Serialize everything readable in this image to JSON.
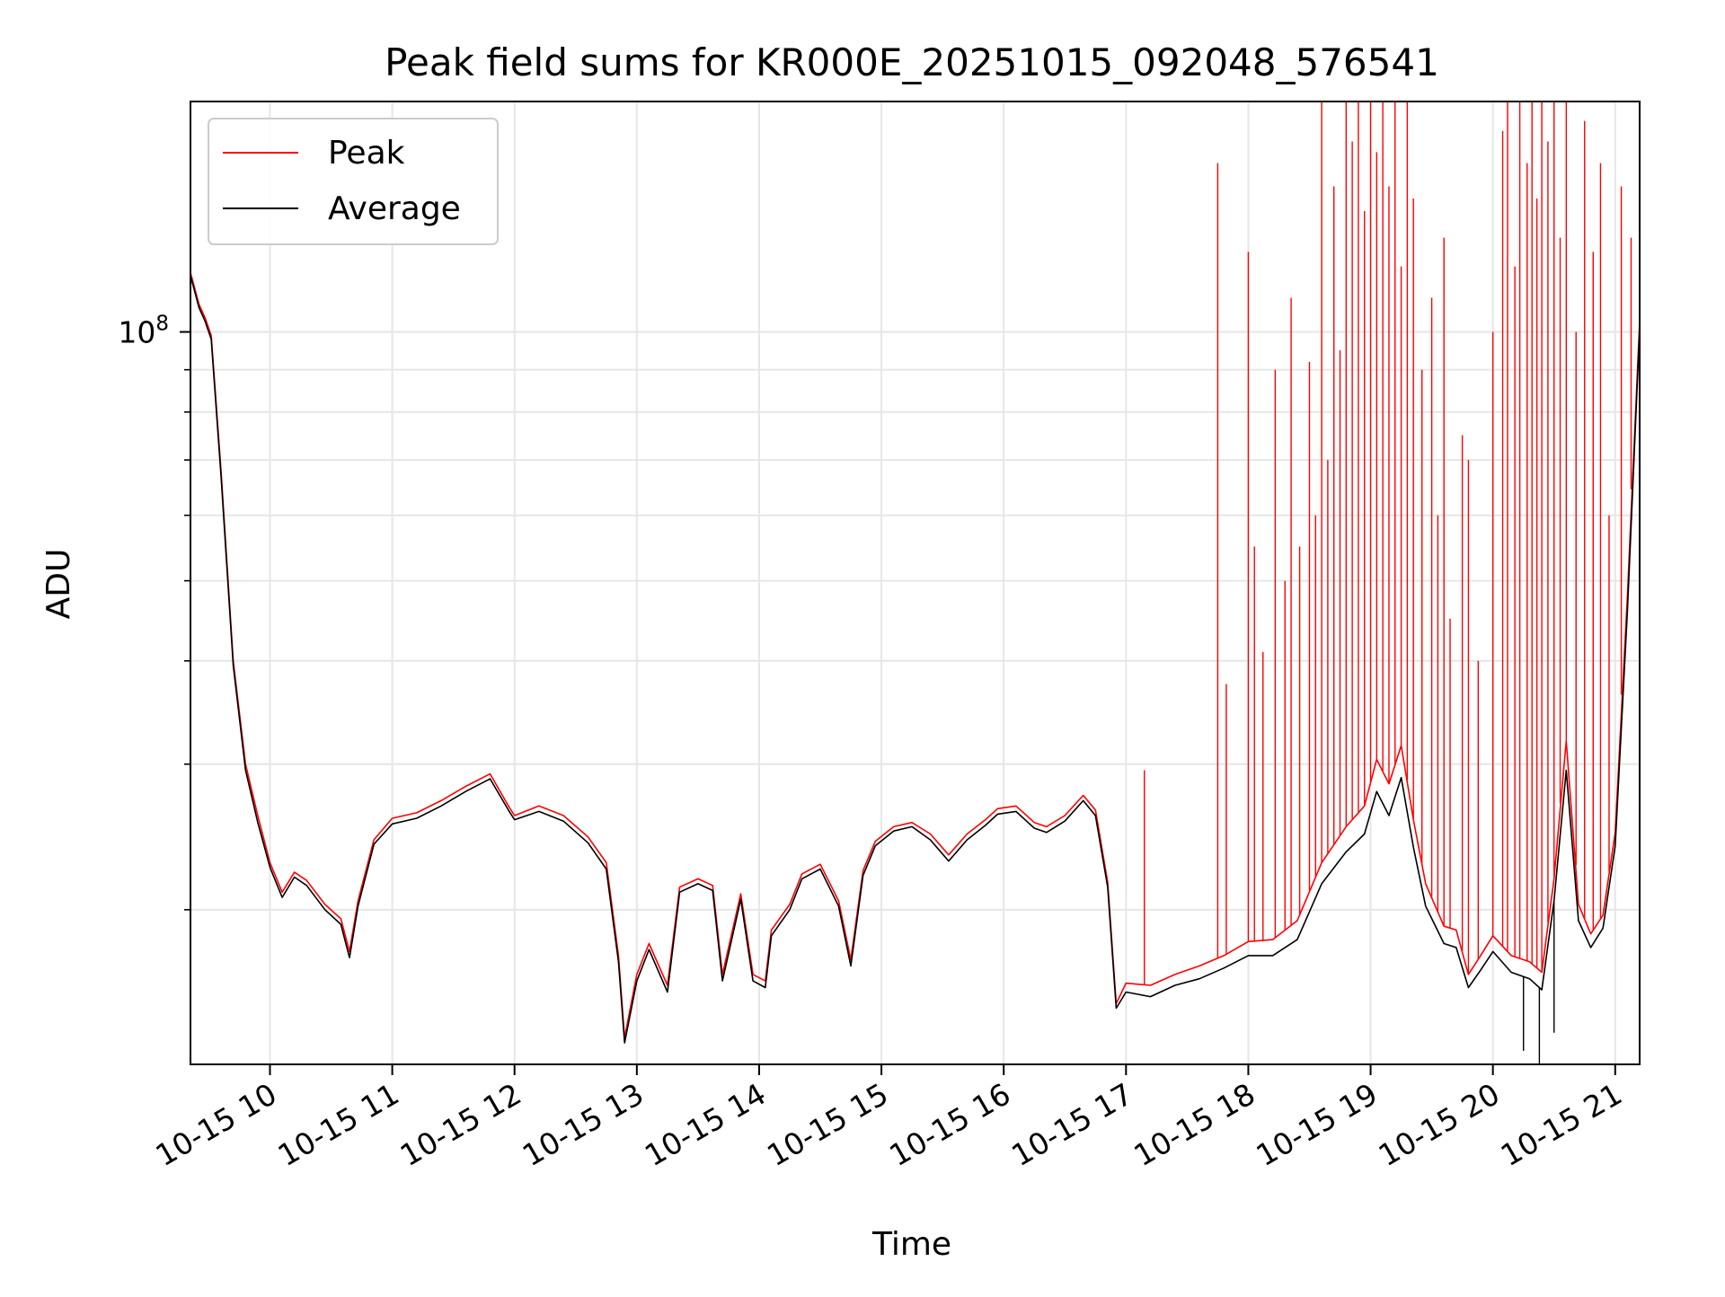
{
  "chart_data": {
    "type": "line",
    "title": "Peak field sums for KR000E_20251015_092048_576541",
    "xlabel": "Time",
    "ylabel": "ADU",
    "yscale": "log",
    "ylim": [
      13000000,
      190000000
    ],
    "xlim": [
      9.35,
      21.2
    ],
    "x_unit": "hours on 2025-10-15",
    "x_ticks": [
      10,
      11,
      12,
      13,
      14,
      15,
      16,
      17,
      18,
      19,
      20,
      21
    ],
    "x_tick_labels": [
      "10-15 10",
      "10-15 11",
      "10-15 12",
      "10-15 13",
      "10-15 14",
      "10-15 15",
      "10-15 16",
      "10-15 17",
      "10-15 18",
      "10-15 19",
      "10-15 20",
      "10-15 21"
    ],
    "y_major_ticks": [
      100000000
    ],
    "y_major_tick_label_base": "10",
    "y_major_tick_label_exp": "8",
    "y_minor_ticks": [
      20000000,
      30000000,
      40000000,
      50000000,
      60000000,
      70000000,
      80000000,
      90000000,
      200000000
    ],
    "grid": true,
    "legend": {
      "placement": "top-left"
    },
    "colors": {
      "peak": "#ff0000",
      "average": "#000000",
      "grid": "#e6e6e6"
    },
    "series": [
      {
        "name": "Peak",
        "color": "#ff0000",
        "x": [
          9.35,
          9.42,
          9.47,
          9.52,
          9.6,
          9.7,
          9.8,
          9.9,
          10.0,
          10.1,
          10.2,
          10.3,
          10.45,
          10.58,
          10.65,
          10.72,
          10.85,
          11.0,
          11.2,
          11.4,
          11.6,
          11.8,
          11.95,
          12.0,
          12.2,
          12.4,
          12.6,
          12.75,
          12.85,
          12.9,
          13.0,
          13.1,
          13.25,
          13.35,
          13.5,
          13.62,
          13.7,
          13.85,
          13.95,
          14.05,
          14.1,
          14.25,
          14.35,
          14.5,
          14.65,
          14.75,
          14.85,
          14.95,
          15.1,
          15.25,
          15.4,
          15.55,
          15.7,
          15.85,
          15.95,
          16.1,
          16.25,
          16.35,
          16.5,
          16.65,
          16.75,
          16.85,
          16.92,
          17.0,
          17.2,
          17.4,
          17.6,
          17.8,
          18.0,
          18.2,
          18.4,
          18.6,
          18.8,
          18.95,
          19.05,
          19.15,
          19.25,
          19.35,
          19.45,
          19.6,
          19.7,
          19.8,
          19.9,
          20.0,
          20.15,
          20.3,
          20.4,
          20.5,
          20.6,
          20.7,
          20.8,
          20.9,
          21.0,
          21.1,
          21.2
        ],
        "values": [
          118000000,
          108000000,
          104000000,
          99000000,
          68000000,
          40000000,
          30000000,
          26000000,
          22800000,
          21000000,
          22200000,
          21700000,
          20300000,
          19500000,
          17800000,
          20500000,
          24300000,
          25800000,
          26200000,
          27100000,
          28200000,
          29200000,
          26700000,
          26000000,
          26700000,
          26000000,
          24500000,
          22800000,
          17600000,
          14000000,
          16700000,
          18200000,
          16200000,
          21300000,
          21800000,
          21400000,
          16700000,
          20900000,
          16700000,
          16400000,
          18900000,
          20300000,
          22100000,
          22700000,
          20500000,
          17400000,
          22300000,
          24200000,
          25200000,
          25500000,
          24700000,
          23300000,
          24700000,
          25700000,
          26500000,
          26700000,
          25500000,
          25200000,
          26000000,
          27500000,
          26400000,
          21600000,
          15400000,
          16300000,
          16200000,
          16700000,
          17100000,
          17600000,
          18300000,
          18400000,
          19400000,
          22800000,
          25200000,
          26700000,
          30400000,
          28400000,
          31600000,
          25700000,
          21500000,
          19100000,
          18900000,
          16700000,
          17600000,
          18600000,
          17600000,
          17300000,
          16800000,
          21800000,
          32000000,
          20300000,
          18700000,
          19700000,
          24800000,
          48000000,
          103000000
        ]
      },
      {
        "name": "Average",
        "color": "#000000",
        "x": [
          9.35,
          9.42,
          9.47,
          9.52,
          9.6,
          9.7,
          9.8,
          9.9,
          10.0,
          10.1,
          10.2,
          10.3,
          10.45,
          10.58,
          10.65,
          10.72,
          10.85,
          11.0,
          11.2,
          11.4,
          11.6,
          11.8,
          11.95,
          12.0,
          12.2,
          12.4,
          12.6,
          12.75,
          12.85,
          12.9,
          13.0,
          13.1,
          13.25,
          13.35,
          13.5,
          13.62,
          13.7,
          13.85,
          13.95,
          14.05,
          14.1,
          14.25,
          14.35,
          14.5,
          14.65,
          14.75,
          14.85,
          14.95,
          15.1,
          15.25,
          15.4,
          15.55,
          15.7,
          15.85,
          15.95,
          16.1,
          16.25,
          16.35,
          16.5,
          16.65,
          16.75,
          16.85,
          16.92,
          17.0,
          17.2,
          17.4,
          17.6,
          17.8,
          18.0,
          18.2,
          18.4,
          18.6,
          18.8,
          18.95,
          19.05,
          19.15,
          19.25,
          19.35,
          19.45,
          19.6,
          19.7,
          19.8,
          19.9,
          20.0,
          20.15,
          20.3,
          20.4,
          20.5,
          20.6,
          20.7,
          20.8,
          20.9,
          21.0,
          21.1,
          21.2
        ],
        "values": [
          117000000,
          107000000,
          103000000,
          98000000,
          67000000,
          39500000,
          29500000,
          25500000,
          22500000,
          20700000,
          21900000,
          21400000,
          20000000,
          19200000,
          17500000,
          20200000,
          24000000,
          25400000,
          25800000,
          26700000,
          27800000,
          28800000,
          26400000,
          25700000,
          26300000,
          25600000,
          24100000,
          22400000,
          17300000,
          13800000,
          16400000,
          17900000,
          15900000,
          21000000,
          21500000,
          21100000,
          16400000,
          20600000,
          16400000,
          16100000,
          18600000,
          20000000,
          21800000,
          22400000,
          20200000,
          17100000,
          22000000,
          23900000,
          24900000,
          25200000,
          24300000,
          22900000,
          24300000,
          25300000,
          26100000,
          26300000,
          25100000,
          24800000,
          25600000,
          27100000,
          26000000,
          21300000,
          15200000,
          15900000,
          15700000,
          16200000,
          16500000,
          17000000,
          17600000,
          17600000,
          18400000,
          21500000,
          23500000,
          24700000,
          27800000,
          26000000,
          28900000,
          23800000,
          20200000,
          18200000,
          18000000,
          16100000,
          16900000,
          17800000,
          16800000,
          16500000,
          16000000,
          20500000,
          29500000,
          19400000,
          18000000,
          19000000,
          23900000,
          46000000,
          101000000
        ]
      }
    ],
    "peak_spikes": [
      {
        "x": 17.15,
        "value": 29500000
      },
      {
        "x": 17.75,
        "value": 160000000
      },
      {
        "x": 17.82,
        "value": 37500000
      },
      {
        "x": 18.0,
        "value": 125000000
      },
      {
        "x": 18.05,
        "value": 55000000
      },
      {
        "x": 18.12,
        "value": 41000000
      },
      {
        "x": 18.22,
        "value": 90000000
      },
      {
        "x": 18.3,
        "value": 50000000
      },
      {
        "x": 18.35,
        "value": 110000000
      },
      {
        "x": 18.42,
        "value": 55000000
      },
      {
        "x": 18.5,
        "value": 92000000
      },
      {
        "x": 18.55,
        "value": 60000000
      },
      {
        "x": 18.6,
        "value": 190000000
      },
      {
        "x": 18.65,
        "value": 70000000
      },
      {
        "x": 18.7,
        "value": 150000000
      },
      {
        "x": 18.75,
        "value": 95000000
      },
      {
        "x": 18.8,
        "value": 190000000
      },
      {
        "x": 18.85,
        "value": 170000000
      },
      {
        "x": 18.9,
        "value": 190000000
      },
      {
        "x": 18.95,
        "value": 140000000
      },
      {
        "x": 19.0,
        "value": 190000000
      },
      {
        "x": 19.05,
        "value": 165000000
      },
      {
        "x": 19.1,
        "value": 190000000
      },
      {
        "x": 19.15,
        "value": 150000000
      },
      {
        "x": 19.2,
        "value": 190000000
      },
      {
        "x": 19.25,
        "value": 120000000
      },
      {
        "x": 19.3,
        "value": 190000000
      },
      {
        "x": 19.35,
        "value": 145000000
      },
      {
        "x": 19.42,
        "value": 90000000
      },
      {
        "x": 19.5,
        "value": 110000000
      },
      {
        "x": 19.55,
        "value": 60000000
      },
      {
        "x": 19.6,
        "value": 130000000
      },
      {
        "x": 19.65,
        "value": 45000000
      },
      {
        "x": 19.75,
        "value": 75000000
      },
      {
        "x": 19.8,
        "value": 70000000
      },
      {
        "x": 19.88,
        "value": 40000000
      },
      {
        "x": 20.0,
        "value": 100000000
      },
      {
        "x": 20.08,
        "value": 175000000
      },
      {
        "x": 20.12,
        "value": 190000000
      },
      {
        "x": 20.18,
        "value": 120000000
      },
      {
        "x": 20.22,
        "value": 190000000
      },
      {
        "x": 20.28,
        "value": 160000000
      },
      {
        "x": 20.32,
        "value": 190000000
      },
      {
        "x": 20.36,
        "value": 145000000
      },
      {
        "x": 20.4,
        "value": 190000000
      },
      {
        "x": 20.45,
        "value": 170000000
      },
      {
        "x": 20.5,
        "value": 190000000
      },
      {
        "x": 20.55,
        "value": 130000000
      },
      {
        "x": 20.6,
        "value": 190000000
      },
      {
        "x": 20.68,
        "value": 100000000
      },
      {
        "x": 20.75,
        "value": 180000000
      },
      {
        "x": 20.82,
        "value": 125000000
      },
      {
        "x": 20.88,
        "value": 160000000
      },
      {
        "x": 20.95,
        "value": 60000000
      },
      {
        "x": 21.05,
        "value": 150000000
      },
      {
        "x": 21.13,
        "value": 130000000
      }
    ],
    "average_dips": [
      {
        "x": 20.25,
        "value": 13500000
      },
      {
        "x": 20.38,
        "value": 13000000
      },
      {
        "x": 20.5,
        "value": 14200000
      }
    ]
  }
}
